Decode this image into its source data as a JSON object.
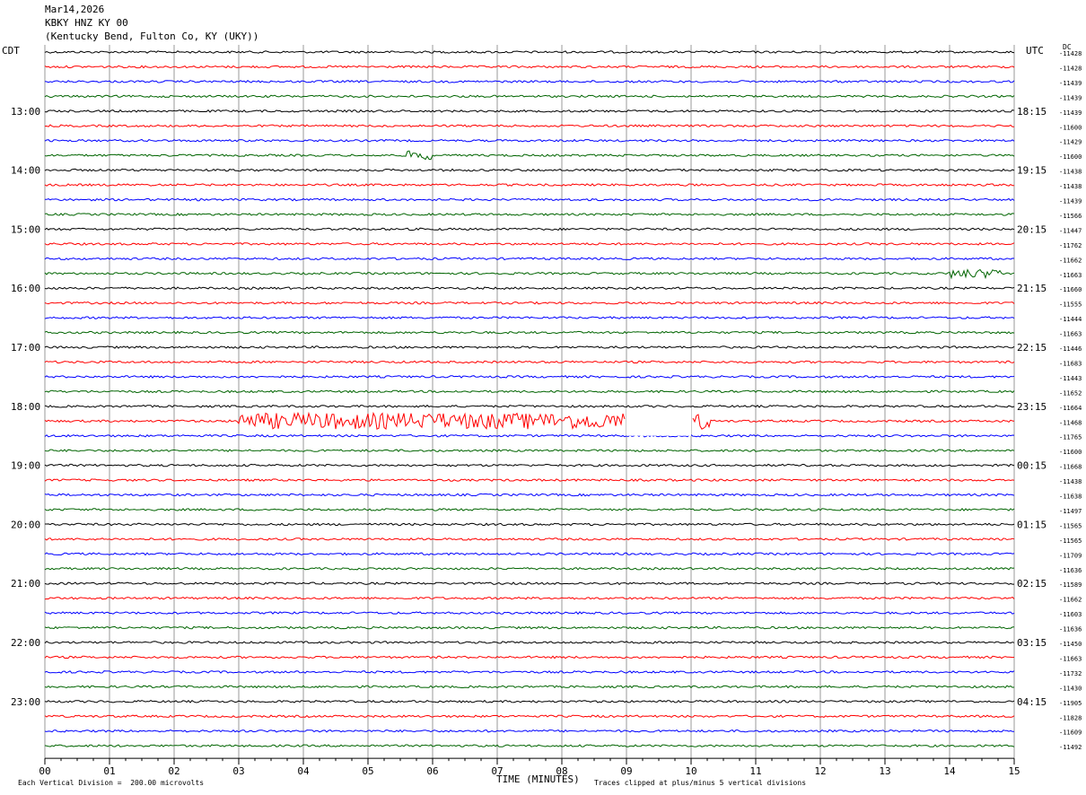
{
  "header": {
    "date": "Mar14,2026",
    "station": "KBKY HNZ KY 00",
    "location": "(Kentucky Bend, Fulton Co, KY (UKY))"
  },
  "left_zone": "CDT",
  "right_zone": "UTC",
  "dc_label": "DC",
  "footer": {
    "scale": "Each Vertical Division =  200.00 microvolts",
    "clip": "Traces clipped at plus/minus 5 vertical divisions"
  },
  "chart_data": {
    "type": "line",
    "xlabel": "TIME (MINUTES)",
    "xlim": [
      0,
      15
    ],
    "x_ticks": [
      "00",
      "01",
      "02",
      "03",
      "04",
      "05",
      "06",
      "07",
      "08",
      "09",
      "10",
      "11",
      "12",
      "13",
      "14",
      "15"
    ],
    "left_hour_labels": [
      "13:00",
      "14:00",
      "15:00",
      "16:00",
      "17:00",
      "18:00",
      "19:00",
      "20:00",
      "21:00",
      "22:00",
      "23:00"
    ],
    "right_hour_labels": [
      "18:15",
      "19:15",
      "20:15",
      "21:15",
      "22:15",
      "23:15",
      "00:15",
      "01:15",
      "02:15",
      "03:15",
      "04:15"
    ],
    "trace_colors": [
      "#000000",
      "#ff0000",
      "#0000ff",
      "#006400"
    ],
    "trace_count": 48,
    "dc_offsets": [
      "-11428",
      "-11428",
      "-11439",
      "-11439",
      "-11439",
      "-11600",
      "-11429",
      "-11600",
      "-11438",
      "-11438",
      "-11439",
      "-11566",
      "-11447",
      "-11762",
      "-11662",
      "-11663",
      "-11660",
      "-11555",
      "-11444",
      "-11663",
      "-11446",
      "-11683",
      "-11443",
      "-11652",
      "-11664",
      "-11468",
      "-11765",
      "-11600",
      "-11668",
      "-11438",
      "-11638",
      "-11497",
      "-11565",
      "-11565",
      "-11709",
      "-11636",
      "-11589",
      "-11662",
      "-11603",
      "-11636",
      "-11450",
      "-11663",
      "-11732",
      "-11430",
      "-11905",
      "-11828",
      "-11609",
      "-11492"
    ],
    "data_gap": {
      "trace_index": 25,
      "minutes": [
        9.0,
        10.0
      ]
    },
    "notable_events": [
      {
        "trace_index": 25,
        "minutes": [
          3.0,
          10.3
        ],
        "note": "large red burst"
      },
      {
        "trace_index": 7,
        "minutes": [
          5.6,
          6.0
        ]
      },
      {
        "trace_index": 15,
        "minutes": [
          14.0,
          14.8
        ]
      }
    ]
  }
}
